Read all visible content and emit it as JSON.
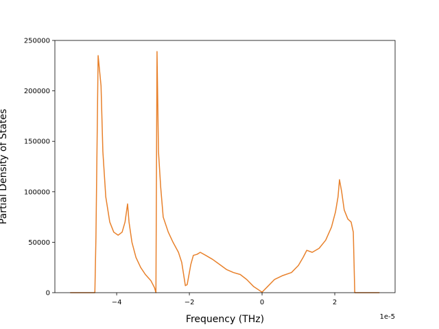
{
  "chart_data": {
    "type": "line",
    "xlabel": "Frequency (THz)",
    "ylabel": "Partial Density of States",
    "x_offset_label": "1e-5",
    "color": "#e8802a",
    "xlim": [
      -5.7e-05,
      3.66e-05
    ],
    "ylim": [
      0,
      250000
    ],
    "xticks": [
      {
        "value": -4e-05,
        "label": "−4"
      },
      {
        "value": -2e-05,
        "label": "−2"
      },
      {
        "value": 0,
        "label": "0"
      },
      {
        "value": 2e-05,
        "label": "2"
      }
    ],
    "yticks": [
      0,
      50000,
      100000,
      150000,
      200000,
      250000
    ],
    "x": [
      -5.28e-05,
      -4.6e-05,
      -4.57e-05,
      -4.51e-05,
      -4.43e-05,
      -4.38e-05,
      -4.3e-05,
      -4.19e-05,
      -4.08e-05,
      -3.96e-05,
      -3.85e-05,
      -3.77e-05,
      -3.7e-05,
      -3.66e-05,
      -3.58e-05,
      -3.47e-05,
      -3.34e-05,
      -3.21e-05,
      -3.06e-05,
      -2.96e-05,
      -2.92e-05,
      -2.89e-05,
      -2.85e-05,
      -2.79e-05,
      -2.72e-05,
      -2.58e-05,
      -2.45e-05,
      -2.3e-05,
      -2.21e-05,
      -2.11e-05,
      -2.06e-05,
      -1.96e-05,
      -1.89e-05,
      -1.79e-05,
      -1.7e-05,
      -1.55e-05,
      -1.36e-05,
      -1.17e-05,
      -9.8e-06,
      -7.9e-06,
      -6e-06,
      -4.2e-06,
      -2.3e-06,
      0,
      1.5e-06,
      3.4e-06,
      5.7e-06,
      8.1e-06,
      1e-05,
      1.13e-05,
      1.23e-05,
      1.38e-05,
      1.57e-05,
      1.75e-05,
      1.91e-05,
      2.02e-05,
      2.09e-05,
      2.13e-05,
      2.19e-05,
      2.26e-05,
      2.36e-05,
      2.45e-05,
      2.51e-05,
      2.55e-05,
      3.23e-05
    ],
    "values": [
      0,
      0,
      55000,
      235000,
      205000,
      140000,
      95000,
      70000,
      60000,
      57000,
      60000,
      70000,
      88000,
      70000,
      50000,
      35000,
      25000,
      18000,
      12000,
      5000,
      0,
      239000,
      140000,
      105000,
      75000,
      60000,
      50000,
      40000,
      30000,
      7000,
      8000,
      28000,
      37000,
      38000,
      40000,
      37000,
      33000,
      28000,
      23000,
      20000,
      18000,
      13000,
      6000,
      500,
      6000,
      13000,
      17000,
      20000,
      27000,
      35000,
      42000,
      40000,
      44000,
      52000,
      65000,
      80000,
      95000,
      112000,
      100000,
      82000,
      73000,
      70000,
      60000,
      0,
      0
    ]
  }
}
